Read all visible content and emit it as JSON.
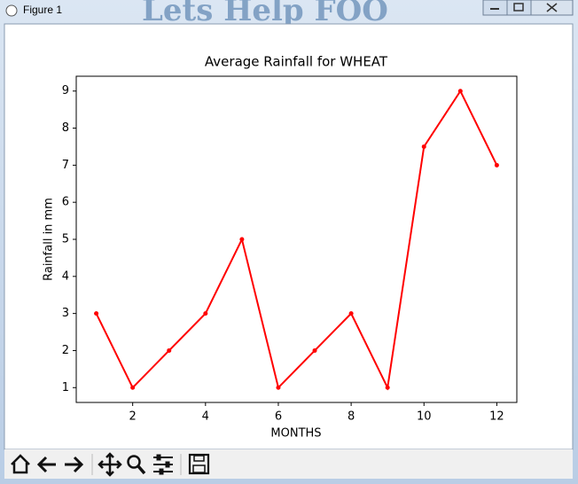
{
  "window": {
    "title": "Figure 1",
    "background_text": "Lets Help FOO"
  },
  "chart_data": {
    "type": "line",
    "title": "Average Rainfall for WHEAT",
    "x_label": "MONTHS",
    "y_label": "Rainfall in mm",
    "x": [
      1,
      2,
      3,
      4,
      5,
      6,
      7,
      8,
      9,
      10,
      11,
      12
    ],
    "values": [
      3,
      1,
      2,
      3,
      5,
      1,
      2,
      3,
      1,
      7.5,
      9,
      7
    ],
    "color": "#ff0000",
    "marker": "o",
    "xlim": [
      0.45,
      12.55
    ],
    "xticks": [
      2,
      4,
      6,
      8,
      10,
      12
    ],
    "ylim": [
      0.6,
      9.4
    ],
    "yticks": [
      1,
      2,
      3,
      4,
      5,
      6,
      7,
      8,
      9
    ],
    "grid": false
  }
}
